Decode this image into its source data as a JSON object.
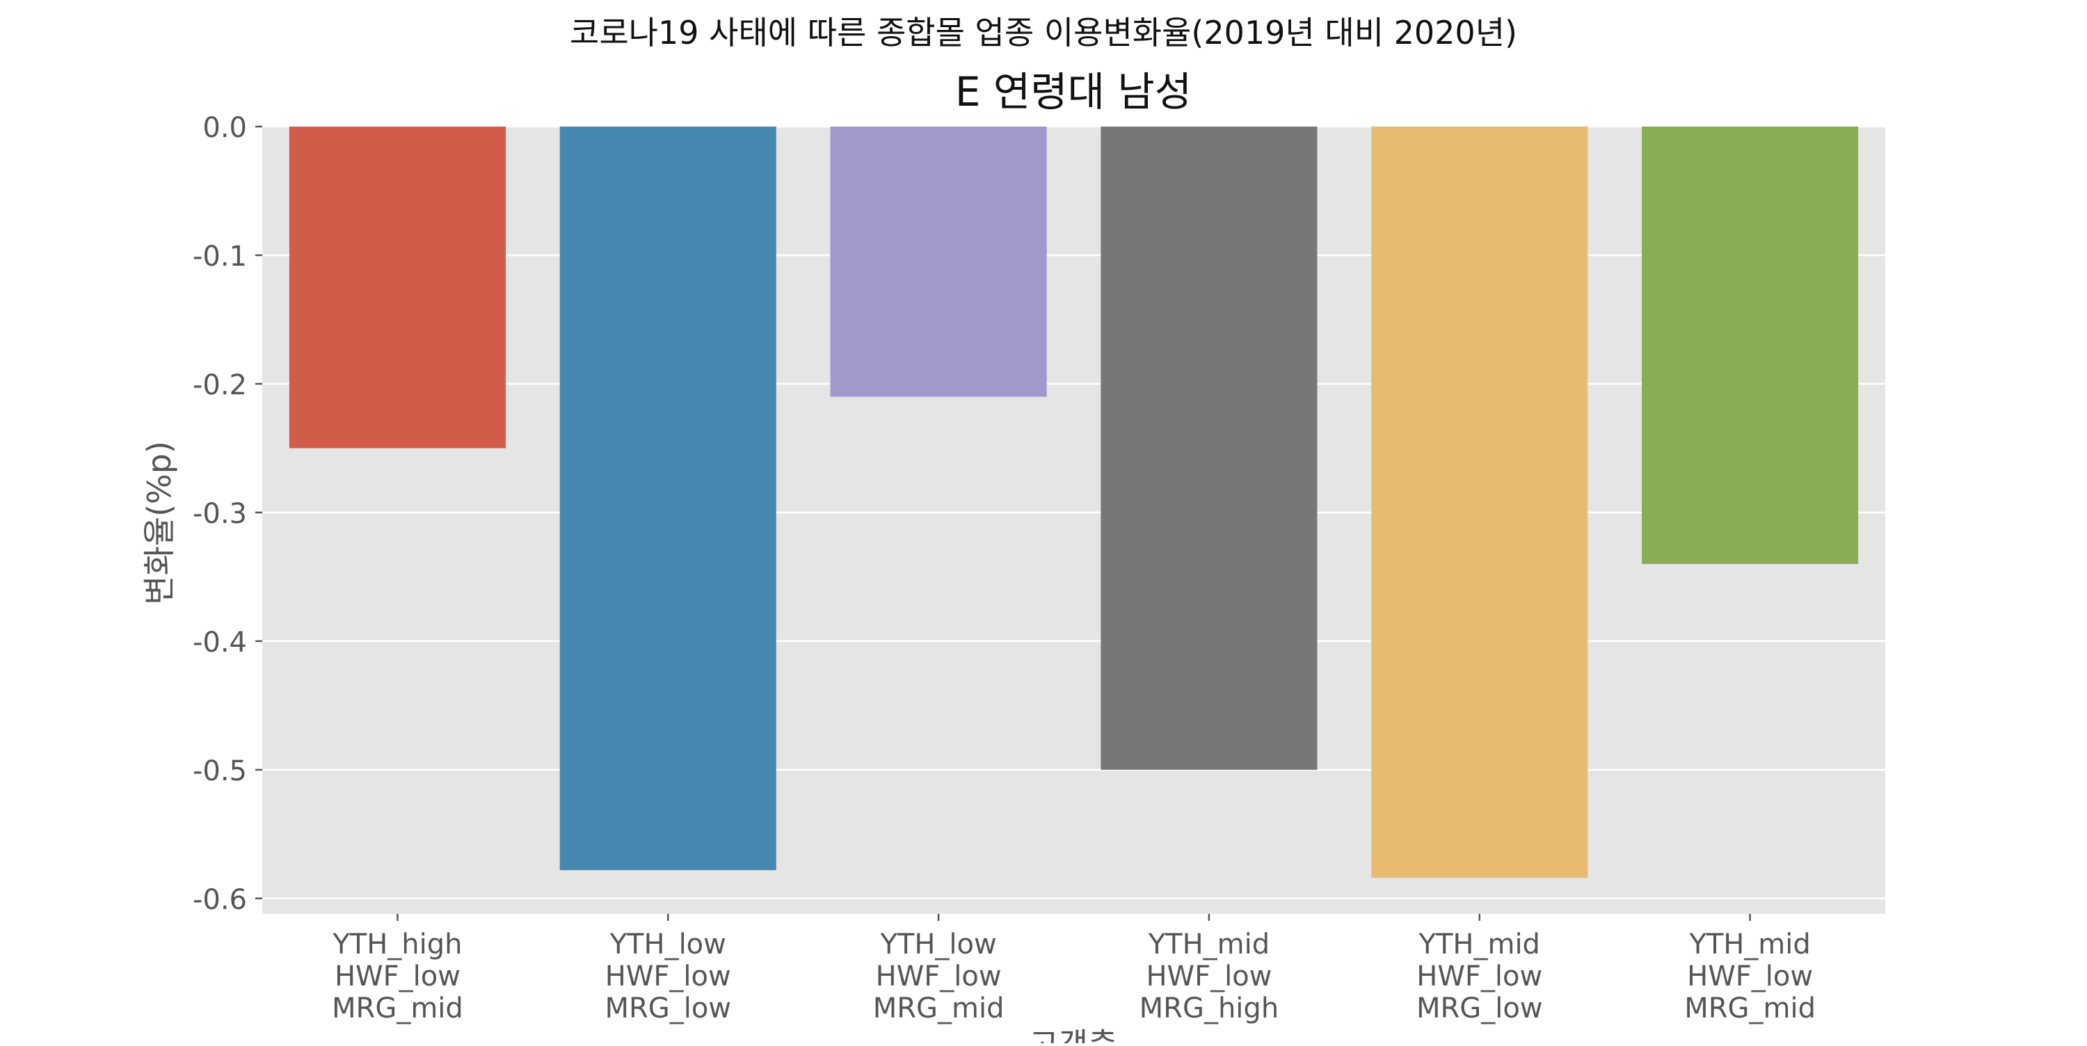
{
  "chart_data": {
    "type": "bar",
    "suptitle": "코로나19 사태에 따른 종합몰 업종 이용변화율(2019년 대비 2020년)",
    "title": "E 연령대 남성",
    "xlabel": "고객층",
    "ylabel": "변화율(%p)",
    "categories": [
      [
        "YTH_high",
        "HWF_low",
        "MRG_mid"
      ],
      [
        "YTH_low",
        "HWF_low",
        "MRG_low"
      ],
      [
        "YTH_low",
        "HWF_low",
        "MRG_mid"
      ],
      [
        "YTH_mid",
        "HWF_low",
        "MRG_high"
      ],
      [
        "YTH_mid",
        "HWF_low",
        "MRG_low"
      ],
      [
        "YTH_mid",
        "HWF_low",
        "MRG_mid"
      ]
    ],
    "values": [
      -0.25,
      -0.578,
      -0.21,
      -0.5,
      -0.584,
      -0.34
    ],
    "colors": [
      "#d05c49",
      "#4587ae",
      "#9f9acb",
      "#777777",
      "#e7bb71",
      "#8aad54"
    ],
    "ylim": [
      -0.612,
      0.0
    ],
    "yticks": [
      "0.0",
      "-0.1",
      "-0.2",
      "-0.3",
      "-0.4",
      "-0.5",
      "-0.6"
    ],
    "ytick_values": [
      0.0,
      -0.1,
      -0.2,
      -0.3,
      -0.4,
      -0.5,
      -0.6
    ],
    "grid": true,
    "background": "#e5e5e5",
    "grid_color": "#ffffff",
    "text_color": "#555555",
    "title_color": "#111111"
  }
}
